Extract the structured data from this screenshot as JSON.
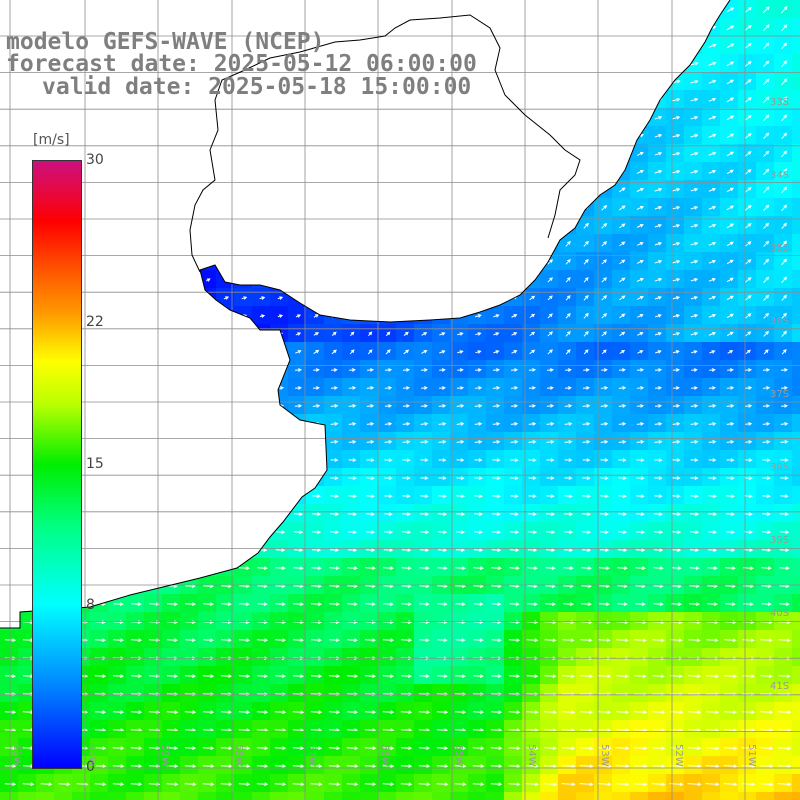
{
  "header": {
    "model": "modelo GEFS-WAVE (NCEP)",
    "forecast": "forecast date: 2025-05-12 06:00:00",
    "valid": "valid date: 2025-05-18 15:00:00"
  },
  "colorbar": {
    "unit": "[m/s]",
    "ticks": [
      "30",
      "22",
      "15",
      "8",
      "0"
    ],
    "tick_values": [
      30,
      22,
      15,
      8,
      0
    ],
    "range": [
      0,
      30
    ]
  },
  "axes": {
    "lon_labels": [
      "61W",
      "60W",
      "59W",
      "58W",
      "57W",
      "56W",
      "55W",
      "54W",
      "53W",
      "52W",
      "51W"
    ],
    "lat_labels": [
      "33S",
      "34S",
      "35S",
      "36S",
      "37S",
      "38S",
      "39S",
      "40S",
      "41S"
    ]
  },
  "colors": {
    "land": "#ffffff",
    "grid": "#8c8c8c",
    "coast": "#000000",
    "title": "#7f7f7f",
    "arrows": "#ffffff"
  }
}
